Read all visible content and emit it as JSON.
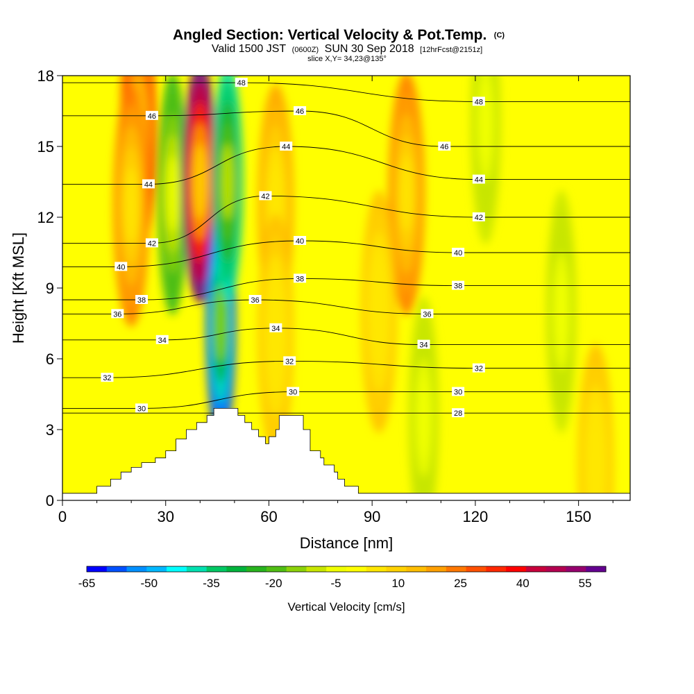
{
  "title": {
    "main": "Angled Section: Vertical Velocity & Pot.Temp.",
    "main_suffix": "(C)",
    "line2_a": "Valid 1500 JST",
    "line2_b": "(0600Z)",
    "line2_c": "SUN 30 Sep 2018",
    "line2_d": "[12hrFcst@2151z]",
    "line3": "slice X,Y= 34,23@135°"
  },
  "chart_data": {
    "type": "heatmap",
    "xlabel": "Distance [nm]",
    "ylabel": "Height [Kft MSL]",
    "xlim": [
      0,
      165
    ],
    "ylim": [
      0,
      18
    ],
    "x_ticks": [
      "0",
      "30",
      "60",
      "90",
      "120",
      "150"
    ],
    "x_tick_values": [
      0,
      30,
      60,
      90,
      120,
      150
    ],
    "y_ticks": [
      "0",
      "3",
      "6",
      "9",
      "12",
      "15",
      "18"
    ],
    "y_tick_values": [
      0,
      3,
      6,
      9,
      12,
      15,
      18
    ],
    "terrain_profile": {
      "x": [
        0,
        10,
        14,
        17,
        20,
        23,
        27,
        30,
        33,
        36,
        39,
        42,
        44,
        47,
        49,
        51,
        53,
        55,
        57,
        59,
        60,
        62,
        63,
        65,
        67,
        70,
        72,
        75,
        76,
        79,
        80,
        82,
        86,
        90,
        165
      ],
      "height": [
        0.3,
        0.6,
        0.9,
        1.2,
        1.4,
        1.6,
        1.8,
        2.1,
        2.6,
        3.0,
        3.3,
        3.6,
        3.9,
        3.9,
        3.9,
        3.6,
        3.3,
        3.0,
        2.7,
        2.4,
        2.7,
        3.0,
        3.6,
        3.6,
        3.6,
        3.0,
        2.1,
        1.8,
        1.5,
        1.2,
        0.9,
        0.6,
        0.3,
        0.3,
        0.3
      ]
    },
    "vertical_velocity": {
      "name": "Vertical Velocity [cm/s]",
      "colorbar_levels": [
        -65,
        -60,
        -55,
        -50,
        -45,
        -40,
        -35,
        -30,
        -25,
        -20,
        -15,
        -10,
        -5,
        0,
        5,
        10,
        15,
        20,
        25,
        30,
        35,
        40,
        45,
        50,
        55,
        60
      ],
      "colorbar_tick_labels": [
        "-65",
        "-50",
        "-35",
        "-20",
        "-5",
        "10",
        "25",
        "40",
        "55"
      ],
      "colorbar_colors": [
        "#0000ff",
        "#0050ff",
        "#0090ff",
        "#00b8ff",
        "#00ffff",
        "#00e0b0",
        "#00c864",
        "#00b43c",
        "#28b41e",
        "#50be14",
        "#8cd20a",
        "#c8e600",
        "#f0ff00",
        "#ffff00",
        "#ffe600",
        "#ffd200",
        "#ffbe00",
        "#ffa000",
        "#ff7800",
        "#ff5000",
        "#ff2800",
        "#ff0000",
        "#c8003c",
        "#b40050",
        "#96006e",
        "#640090"
      ],
      "features": [
        {
          "kind": "updraft",
          "x": 22,
          "y": 15.5,
          "peak": 40
        },
        {
          "kind": "updraft",
          "x": 20,
          "y": 12.5,
          "peak": 25
        },
        {
          "kind": "downdraft",
          "x": 32,
          "y": 13.0,
          "peak": -25
        },
        {
          "kind": "updraft",
          "x": 40,
          "y": 13.5,
          "peak": 60
        },
        {
          "kind": "downdraft",
          "x": 46,
          "y": 7.5,
          "peak": -65
        },
        {
          "kind": "downdraft",
          "x": 48,
          "y": 13.5,
          "peak": -40
        },
        {
          "kind": "updraft",
          "x": 62,
          "y": 12.5,
          "peak": 20
        },
        {
          "kind": "updraft",
          "x": 62,
          "y": 7.0,
          "peak": 15
        },
        {
          "kind": "updraft",
          "x": 100,
          "y": 13.0,
          "peak": 25
        },
        {
          "kind": "updraft",
          "x": 92,
          "y": 8.0,
          "peak": 15
        },
        {
          "kind": "downdraft",
          "x": 123,
          "y": 16.0,
          "peak": -10
        },
        {
          "kind": "downdraft",
          "x": 145,
          "y": 8.0,
          "peak": -10
        },
        {
          "kind": "downdraft",
          "x": 105,
          "y": 3.5,
          "peak": -10
        },
        {
          "kind": "updraft",
          "x": 155,
          "y": 1.5,
          "peak": 15
        }
      ]
    },
    "potential_temperature": {
      "name": "Pot.Temp. (C)",
      "contour_labels": [
        {
          "text": "48",
          "x": 52,
          "y": 17.7
        },
        {
          "text": "48",
          "x": 121,
          "y": 16.9
        },
        {
          "text": "46",
          "x": 26,
          "y": 16.3
        },
        {
          "text": "46",
          "x": 69,
          "y": 16.5
        },
        {
          "text": "46",
          "x": 111,
          "y": 15.0
        },
        {
          "text": "44",
          "x": 65,
          "y": 15.0
        },
        {
          "text": "44",
          "x": 25,
          "y": 13.4
        },
        {
          "text": "44",
          "x": 121,
          "y": 13.6
        },
        {
          "text": "42",
          "x": 59,
          "y": 12.9
        },
        {
          "text": "42",
          "x": 121,
          "y": 12.0
        },
        {
          "text": "42",
          "x": 26,
          "y": 10.9
        },
        {
          "text": "40",
          "x": 69,
          "y": 11.0
        },
        {
          "text": "40",
          "x": 115,
          "y": 10.5
        },
        {
          "text": "40",
          "x": 17,
          "y": 9.9
        },
        {
          "text": "38",
          "x": 69,
          "y": 9.4
        },
        {
          "text": "38",
          "x": 115,
          "y": 9.1
        },
        {
          "text": "38",
          "x": 23,
          "y": 8.5
        },
        {
          "text": "36",
          "x": 56,
          "y": 8.5
        },
        {
          "text": "36",
          "x": 16,
          "y": 7.9
        },
        {
          "text": "36",
          "x": 106,
          "y": 7.9
        },
        {
          "text": "34",
          "x": 62,
          "y": 7.3
        },
        {
          "text": "34",
          "x": 29,
          "y": 6.8
        },
        {
          "text": "34",
          "x": 105,
          "y": 6.6
        },
        {
          "text": "32",
          "x": 66,
          "y": 5.9
        },
        {
          "text": "32",
          "x": 13,
          "y": 5.2
        },
        {
          "text": "32",
          "x": 121,
          "y": 5.6
        },
        {
          "text": "30",
          "x": 67,
          "y": 4.6
        },
        {
          "text": "30",
          "x": 115,
          "y": 4.6
        },
        {
          "text": "30",
          "x": 23,
          "y": 3.9
        },
        {
          "text": "28",
          "x": 115,
          "y": 3.7
        }
      ]
    }
  }
}
